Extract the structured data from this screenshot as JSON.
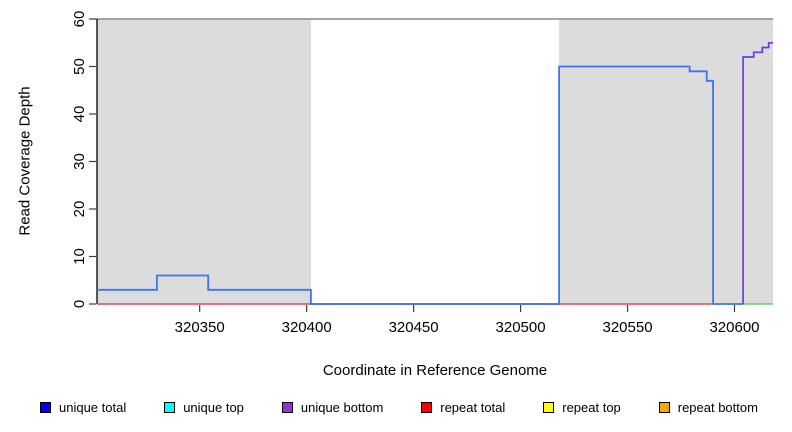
{
  "chart_data": {
    "type": "line",
    "title": "",
    "xlabel": "Coordinate in Reference Genome",
    "ylabel": "Read Coverage Depth",
    "xlim": [
      320302,
      320618
    ],
    "ylim": [
      0,
      60
    ],
    "x_ticks": [
      "320350",
      "320400",
      "320450",
      "320500",
      "320550",
      "320600"
    ],
    "x_tick_values": [
      320350,
      320400,
      320450,
      320500,
      320550,
      320600
    ],
    "y_ticks": [
      "0",
      "10",
      "20",
      "30",
      "40",
      "50",
      "60"
    ],
    "y_tick_values": [
      0,
      10,
      20,
      30,
      40,
      50,
      60
    ],
    "grid": false,
    "legend_position": "bottom",
    "background_shading": {
      "color": "#dcdcdc",
      "regions": [
        [
          320302,
          320402
        ],
        [
          320518,
          320618
        ]
      ]
    },
    "frame": {
      "top_border_color": "#8a8a8a",
      "left_axis_color": "#000000",
      "tick_color": "#3c3c3c"
    },
    "series": [
      {
        "name": "repeat total",
        "color": "#e04a52",
        "width": 1.5,
        "points": [
          [
            320302,
            0
          ],
          [
            320590,
            0
          ]
        ]
      },
      {
        "name": "baseline segment right (green)",
        "color": "#74c87a",
        "width": 1.5,
        "points": [
          [
            320604,
            0
          ],
          [
            320618,
            0
          ]
        ]
      },
      {
        "name": "unique total",
        "color": "#3d74f0",
        "width": 1.8,
        "points": [
          [
            320302,
            3
          ],
          [
            320330,
            3
          ],
          [
            320330,
            6
          ],
          [
            320354,
            6
          ],
          [
            320354,
            3
          ],
          [
            320402,
            3
          ],
          [
            320402,
            0
          ],
          [
            320518,
            0
          ],
          [
            320518,
            50
          ],
          [
            320579,
            50
          ],
          [
            320579,
            49
          ],
          [
            320587,
            49
          ],
          [
            320587,
            47
          ],
          [
            320590,
            47
          ],
          [
            320590,
            0
          ],
          [
            320604,
            0
          ]
        ]
      },
      {
        "name": "unique bottom",
        "color": "#6d3ae2",
        "width": 1.7,
        "points": [
          [
            320604,
            0
          ],
          [
            320604,
            52
          ],
          [
            320609,
            52
          ],
          [
            320609,
            53
          ],
          [
            320613,
            53
          ],
          [
            320613,
            54
          ],
          [
            320616,
            54
          ],
          [
            320616,
            55
          ],
          [
            320618,
            55
          ]
        ]
      }
    ]
  },
  "legend": {
    "items": [
      {
        "label": "unique total",
        "color": "#0000ff"
      },
      {
        "label": "unique top",
        "color": "#00ffff"
      },
      {
        "label": "unique bottom",
        "color": "#9b30d0"
      },
      {
        "label": "repeat total",
        "color": "#ff0000"
      },
      {
        "label": "repeat top",
        "color": "#ffff00"
      },
      {
        "label": "repeat bottom",
        "color": "#ffa500"
      }
    ]
  }
}
